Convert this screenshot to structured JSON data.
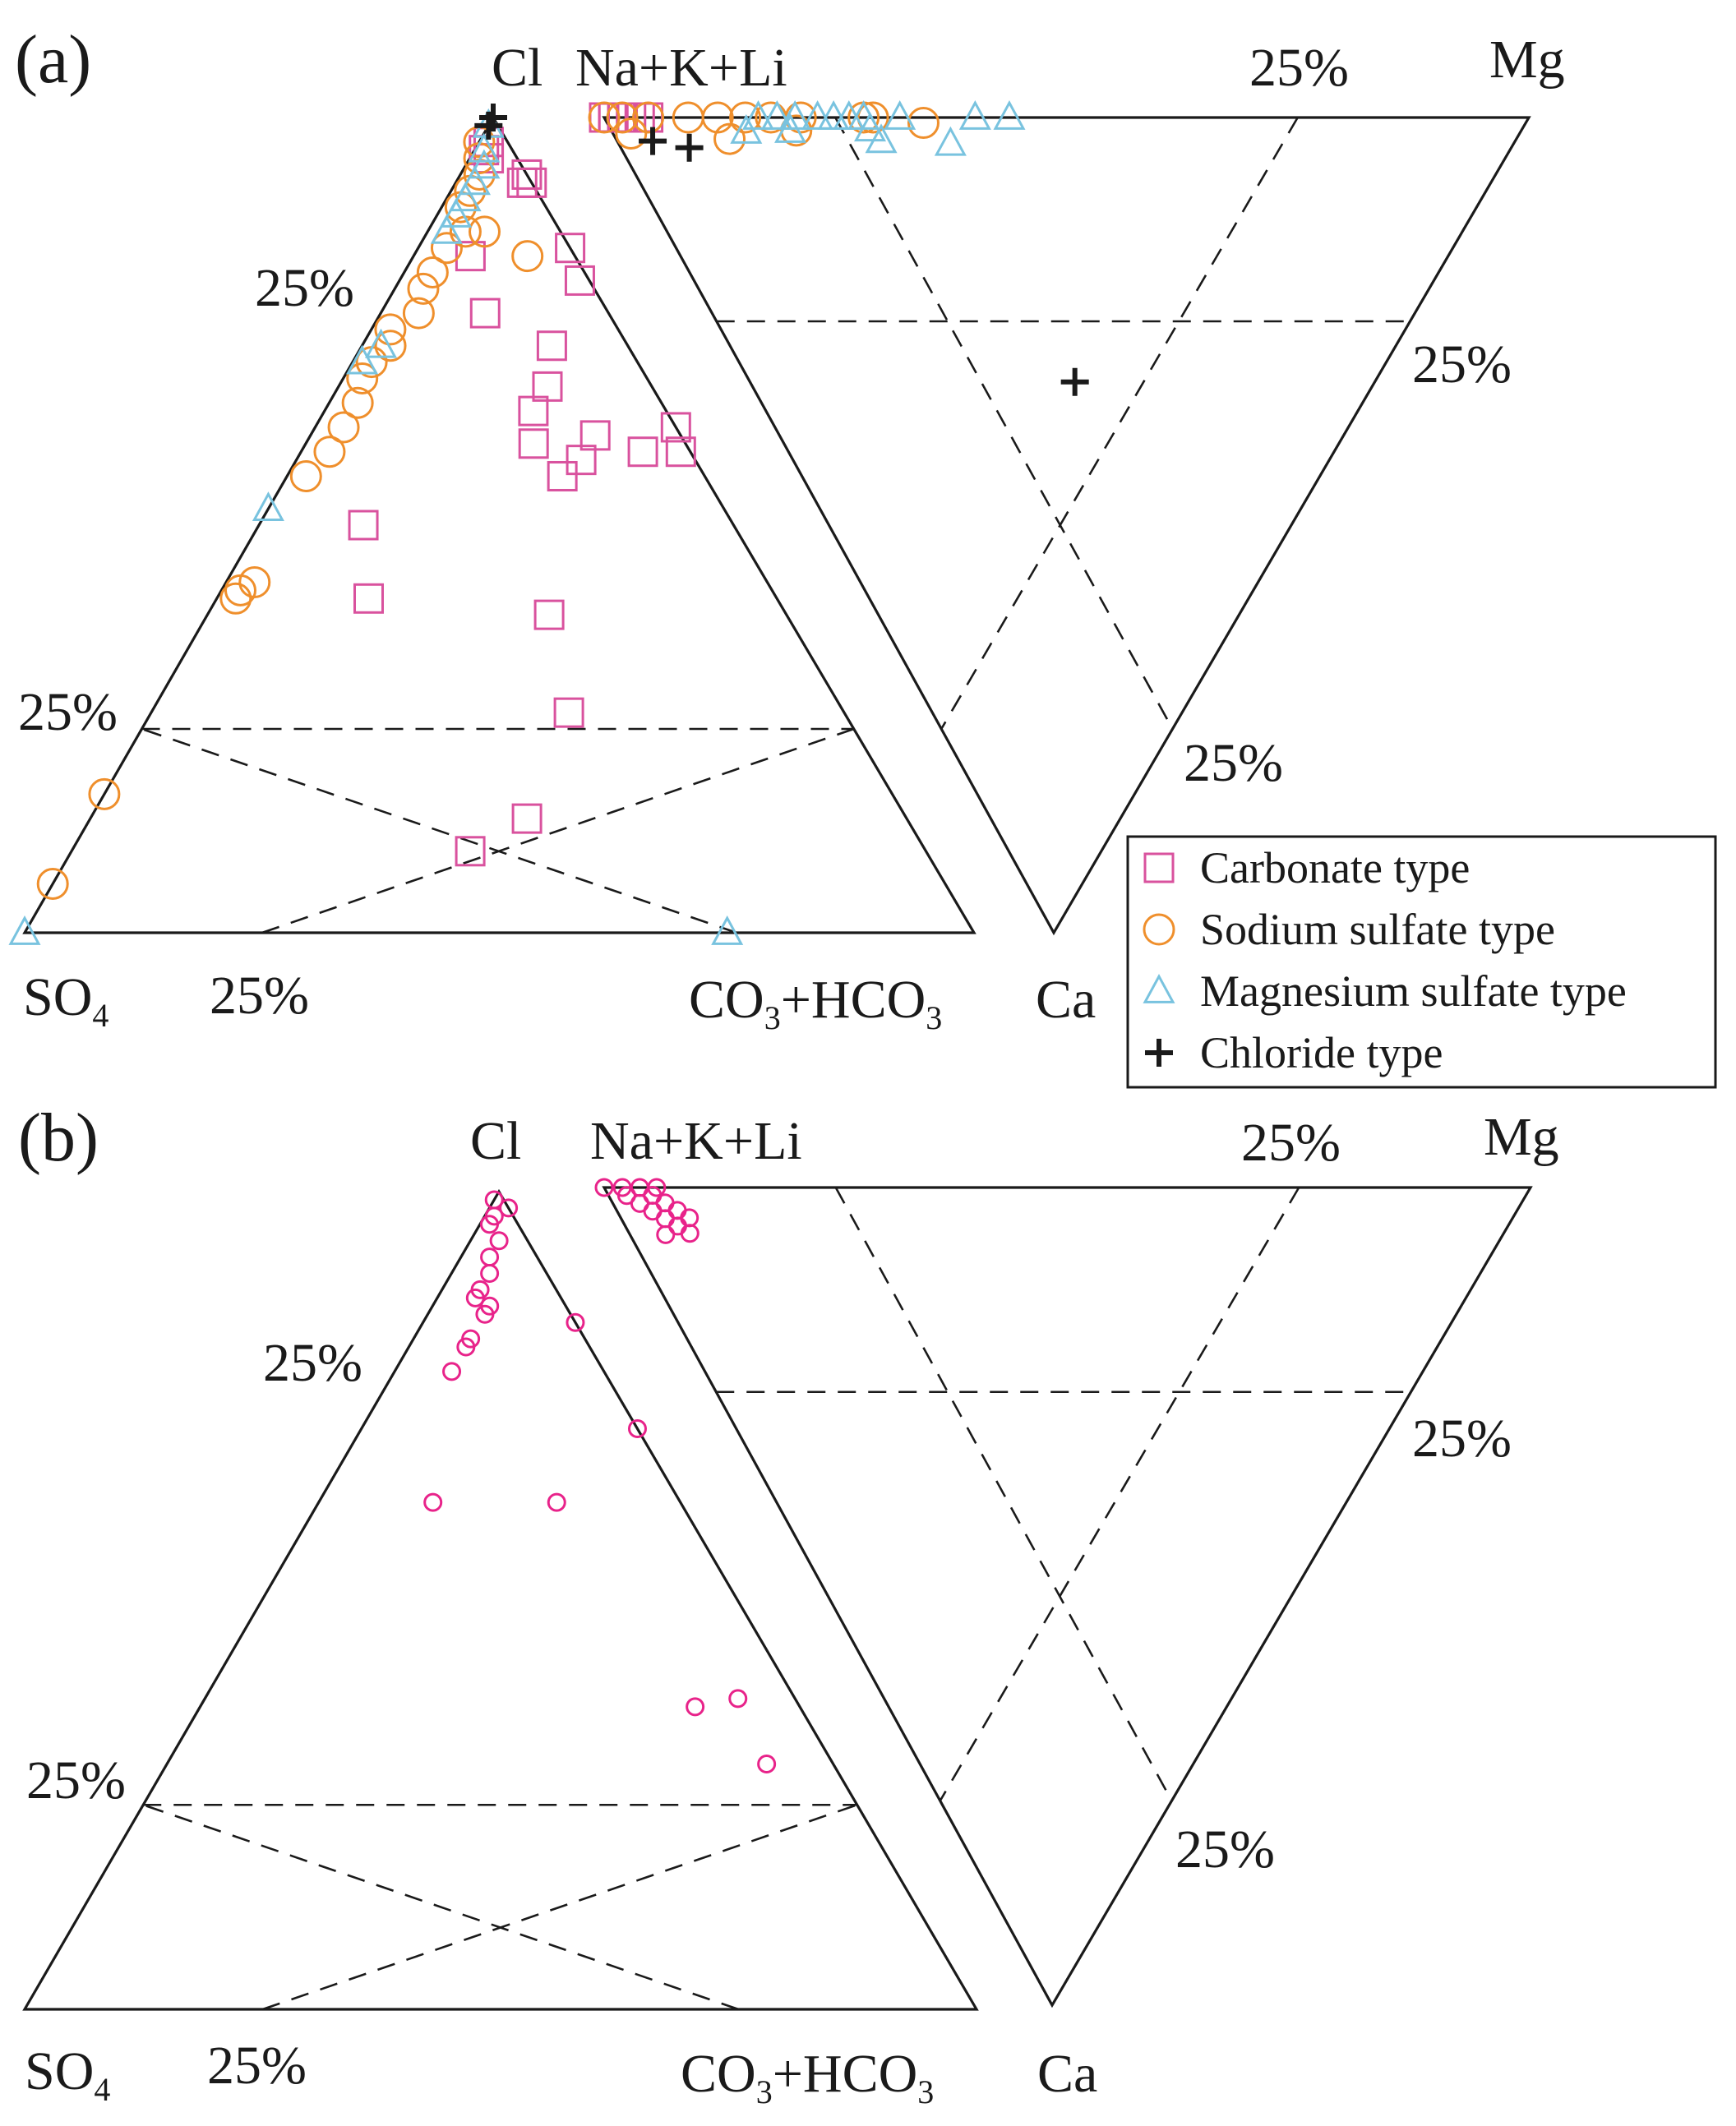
{
  "panels": [
    {
      "id": "a",
      "label": "(a)",
      "anion_apex_top": "Cl",
      "anion_left": "SO",
      "anion_left_sub": "4",
      "anion_right_parts": [
        "CO",
        "3",
        "+HCO",
        "3"
      ],
      "cation_top_left": "Na+K+Li",
      "cation_top_right": "Mg",
      "cation_bottom": "Ca",
      "pct_label": "25%"
    },
    {
      "id": "b",
      "label": "(b)",
      "anion_apex_top": "Cl",
      "anion_left": "SO",
      "anion_left_sub": "4",
      "anion_right_parts": [
        "CO",
        "3",
        "+HCO",
        "3"
      ],
      "cation_top_left": "Na+K+Li",
      "cation_top_right": "Mg",
      "cation_bottom": "Ca",
      "pct_label": "25%"
    }
  ],
  "legend": [
    {
      "key": "carbonate",
      "label": "Carbonate type",
      "marker": "square",
      "color": "#d9529e"
    },
    {
      "key": "sodium_sulfate",
      "label": "Sodium sulfate type",
      "marker": "circle",
      "color": "#ef8f2c"
    },
    {
      "key": "magnesium_sulfate",
      "label": "Magnesium sulfate type",
      "marker": "triangle",
      "color": "#79c3df"
    },
    {
      "key": "chloride",
      "label": "Chloride type",
      "marker": "plus",
      "color": "#1a1a1a"
    }
  ],
  "colors": {
    "frame": "#1a1a1a",
    "panel_b_points": "#e8238a"
  },
  "chart_data": [
    {
      "type": "scatter",
      "chart_kind": "ternary-pair",
      "panel": "a",
      "ternary_units": "fraction",
      "anion_axes": [
        "Cl",
        "SO4",
        "CO3+HCO3"
      ],
      "cation_axes": [
        "Na+K+Li",
        "Mg",
        "Ca"
      ],
      "gridlines_at": [
        0.25,
        0.75
      ],
      "series": [
        {
          "name": "Carbonate type",
          "anion_points": [
            [
              0.97,
              0.02,
              0.01
            ],
            [
              0.96,
              0.03,
              0.01
            ],
            [
              0.95,
              0.03,
              0.02
            ],
            [
              0.93,
              0.0,
              0.07
            ],
            [
              0.92,
              0.0,
              0.08
            ],
            [
              0.92,
              0.01,
              0.07
            ],
            [
              0.83,
              0.11,
              0.06
            ],
            [
              0.84,
              0.0,
              0.16
            ],
            [
              0.8,
              0.01,
              0.19
            ],
            [
              0.76,
              0.13,
              0.11
            ],
            [
              0.72,
              0.08,
              0.2
            ],
            [
              0.67,
              0.11,
              0.22
            ],
            [
              0.64,
              0.14,
              0.22
            ],
            [
              0.6,
              0.16,
              0.24
            ],
            [
              0.62,
              0.0,
              0.38
            ],
            [
              0.61,
              0.09,
              0.3
            ],
            [
              0.59,
              0.05,
              0.36
            ],
            [
              0.59,
              0.01,
              0.4
            ],
            [
              0.58,
              0.12,
              0.3
            ],
            [
              0.56,
              0.15,
              0.29
            ],
            [
              0.5,
              0.39,
              0.11
            ],
            [
              0.41,
              0.43,
              0.16
            ],
            [
              0.39,
              0.25,
              0.36
            ],
            [
              0.27,
              0.29,
              0.44
            ],
            [
              0.14,
              0.4,
              0.46
            ],
            [
              0.1,
              0.48,
              0.42
            ]
          ],
          "cation_points": [
            [
              1.0,
              0.0,
              0.0
            ],
            [
              1.0,
              0.0,
              0.0
            ],
            [
              1.0,
              0.01,
              0.0
            ],
            [
              1.0,
              0.01,
              0.0
            ],
            [
              1.0,
              0.02,
              0.0
            ],
            [
              1.0,
              0.03,
              0.0
            ],
            [
              1.0,
              0.04,
              0.0
            ],
            [
              1.0,
              0.05,
              0.0
            ],
            [
              0.98,
              0.02,
              0.0
            ]
          ]
        },
        {
          "name": "Sodium sulfate type",
          "anion_points": [
            [
              0.97,
              0.03,
              0.0
            ],
            [
              0.95,
              0.04,
              0.01
            ],
            [
              0.93,
              0.05,
              0.02
            ],
            [
              0.91,
              0.07,
              0.02
            ],
            [
              0.89,
              0.09,
              0.02
            ],
            [
              0.86,
              0.1,
              0.04
            ],
            [
              0.84,
              0.13,
              0.03
            ],
            [
              0.81,
              0.16,
              0.03
            ],
            [
              0.79,
              0.18,
              0.03
            ],
            [
              0.76,
              0.2,
              0.04
            ],
            [
              0.74,
              0.24,
              0.02
            ],
            [
              0.72,
              0.25,
              0.03
            ],
            [
              0.7,
              0.28,
              0.02
            ],
            [
              0.68,
              0.3,
              0.02
            ],
            [
              0.65,
              0.32,
              0.03
            ],
            [
              0.62,
              0.35,
              0.03
            ],
            [
              0.59,
              0.38,
              0.03
            ],
            [
              0.56,
              0.42,
              0.02
            ],
            [
              0.43,
              0.54,
              0.03
            ],
            [
              0.42,
              0.56,
              0.02
            ],
            [
              0.41,
              0.57,
              0.02
            ],
            [
              0.83,
              0.05,
              0.12
            ],
            [
              0.86,
              0.08,
              0.06
            ],
            [
              0.17,
              0.83,
              0.0
            ],
            [
              0.06,
              0.94,
              0.0
            ]
          ],
          "cation_points": [
            [
              1.0,
              0.0,
              0.0
            ],
            [
              1.0,
              0.02,
              0.0
            ],
            [
              1.0,
              0.05,
              0.0
            ],
            [
              1.0,
              0.1,
              0.0
            ],
            [
              1.0,
              0.14,
              0.0
            ],
            [
              1.0,
              0.18,
              0.0
            ],
            [
              1.0,
              0.22,
              0.0
            ],
            [
              1.0,
              0.27,
              0.0
            ],
            [
              0.98,
              0.25,
              0.02
            ],
            [
              1.0,
              0.39,
              0.0
            ],
            [
              1.0,
              0.41,
              0.0
            ],
            [
              0.99,
              0.52,
              0.01
            ],
            [
              0.97,
              0.14,
              0.03
            ],
            [
              0.98,
              0.02,
              0.02
            ]
          ]
        },
        {
          "name": "Magnesium sulfate type",
          "anion_points": [
            [
              0.99,
              0.01,
              0.0
            ],
            [
              0.96,
              0.03,
              0.01
            ],
            [
              0.94,
              0.04,
              0.02
            ],
            [
              0.92,
              0.06,
              0.02
            ],
            [
              0.9,
              0.08,
              0.02
            ],
            [
              0.88,
              0.1,
              0.02
            ],
            [
              0.86,
              0.12,
              0.02
            ],
            [
              0.72,
              0.26,
              0.02
            ],
            [
              0.7,
              0.29,
              0.01
            ],
            [
              0.52,
              0.48,
              0.0
            ],
            [
              0.0,
              1.0,
              0.0
            ],
            [
              0.0,
              0.26,
              0.74
            ]
          ],
          "cation_points": [
            [
              1.0,
              0.2,
              0.0
            ],
            [
              1.0,
              0.23,
              0.0
            ],
            [
              1.0,
              0.26,
              0.0
            ],
            [
              1.0,
              0.3,
              0.0
            ],
            [
              1.0,
              0.33,
              0.0
            ],
            [
              1.0,
              0.36,
              0.0
            ],
            [
              1.0,
              0.39,
              0.0
            ],
            [
              1.0,
              0.47,
              0.0
            ],
            [
              1.0,
              0.67,
              0.0
            ],
            [
              1.0,
              0.78,
              0.0
            ],
            [
              0.98,
              0.17,
              0.02
            ],
            [
              0.98,
              0.24,
              0.02
            ],
            [
              0.98,
              0.39,
              0.02
            ],
            [
              0.96,
              0.4,
              0.04
            ],
            [
              0.95,
              0.56,
              0.05
            ]
          ]
        },
        {
          "name": "Chloride type",
          "anion_points": [
            [
              0.99,
              0.01,
              0.0
            ],
            [
              1.0,
              0.0,
              0.0
            ]
          ],
          "cation_points": [
            [
              0.97,
              0.04,
              0.03
            ],
            [
              0.96,
              0.08,
              0.04
            ],
            [
              0.48,
              0.52,
              0.48
            ]
          ]
        }
      ]
    },
    {
      "type": "scatter",
      "chart_kind": "ternary-pair",
      "panel": "b",
      "ternary_units": "fraction",
      "anion_axes": [
        "Cl",
        "SO4",
        "CO3+HCO3"
      ],
      "cation_axes": [
        "Na+K+Li",
        "Mg",
        "Ca"
      ],
      "gridlines_at": [
        0.25,
        0.75
      ],
      "series": [
        {
          "anion_points": [
            [
              0.99,
              0.01,
              0.0
            ],
            [
              0.98,
              0.0,
              0.02
            ],
            [
              0.97,
              0.02,
              0.01
            ],
            [
              0.96,
              0.03,
              0.01
            ],
            [
              0.94,
              0.03,
              0.03
            ],
            [
              0.92,
              0.05,
              0.03
            ],
            [
              0.9,
              0.06,
              0.04
            ],
            [
              0.88,
              0.08,
              0.04
            ],
            [
              0.87,
              0.09,
              0.04
            ],
            [
              0.86,
              0.08,
              0.06
            ],
            [
              0.85,
              0.09,
              0.06
            ],
            [
              0.82,
              0.12,
              0.06
            ],
            [
              0.81,
              0.13,
              0.06
            ],
            [
              0.78,
              0.16,
              0.06
            ],
            [
              0.84,
              0.0,
              0.16
            ],
            [
              0.71,
              0.0,
              0.29
            ],
            [
              0.62,
              0.26,
              0.12
            ],
            [
              0.62,
              0.13,
              0.25
            ],
            [
              0.37,
              0.11,
              0.52
            ],
            [
              0.38,
              0.06,
              0.56
            ],
            [
              0.3,
              0.07,
              0.63
            ]
          ],
          "cation_points": [
            [
              1.0,
              0.0,
              0.0
            ],
            [
              1.0,
              0.02,
              0.0
            ],
            [
              1.0,
              0.04,
              0.0
            ],
            [
              1.0,
              0.06,
              0.0
            ],
            [
              0.99,
              0.02,
              0.01
            ],
            [
              0.99,
              0.05,
              0.01
            ],
            [
              0.98,
              0.03,
              0.02
            ],
            [
              0.98,
              0.06,
              0.02
            ],
            [
              0.97,
              0.04,
              0.03
            ],
            [
              0.97,
              0.07,
              0.03
            ],
            [
              0.96,
              0.05,
              0.04
            ],
            [
              0.96,
              0.08,
              0.04
            ],
            [
              0.95,
              0.06,
              0.05
            ],
            [
              0.94,
              0.07,
              0.06
            ],
            [
              0.94,
              0.04,
              0.06
            ]
          ]
        }
      ]
    }
  ]
}
